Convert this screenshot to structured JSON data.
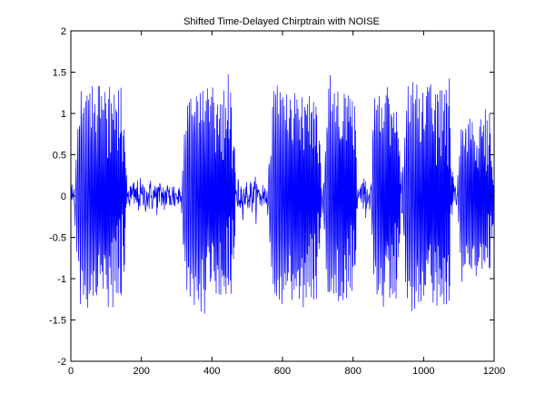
{
  "chart_data": {
    "type": "line",
    "title": "Shifted Time-Delayed Chirptrain with NOISE",
    "xlabel": "",
    "ylabel": "",
    "xlim": [
      0,
      1200
    ],
    "ylim": [
      -2,
      2
    ],
    "xticks": [
      0,
      200,
      400,
      600,
      800,
      1000,
      1200
    ],
    "yticks": [
      -2,
      -1.5,
      -1,
      -0.5,
      0,
      0.5,
      1,
      1.5,
      2
    ],
    "xtick_labels": [
      "0",
      "200",
      "400",
      "600",
      "800",
      "1000",
      "1200"
    ],
    "ytick_labels": [
      "-2",
      "-1.5",
      "-1",
      "-0.5",
      "0",
      "0.5",
      "1",
      "1.5",
      "2"
    ],
    "grid": false,
    "legend": "none",
    "series": [
      {
        "color": "#0000ff",
        "sample_count": 1200,
        "noise_std": 0.1,
        "chirp_bursts": [
          {
            "start": 8,
            "end": 160,
            "amplitude": 1.2
          },
          {
            "start": 310,
            "end": 470,
            "amplitude": 1.2
          },
          {
            "start": 555,
            "end": 712,
            "amplitude": 1.2
          },
          {
            "start": 715,
            "end": 812,
            "amplitude": 1.2
          },
          {
            "start": 850,
            "end": 935,
            "amplitude": 1.2
          },
          {
            "start": 935,
            "end": 1085,
            "amplitude": 1.25
          },
          {
            "start": 1095,
            "end": 1200,
            "amplitude": 0.9
          }
        ]
      }
    ]
  }
}
